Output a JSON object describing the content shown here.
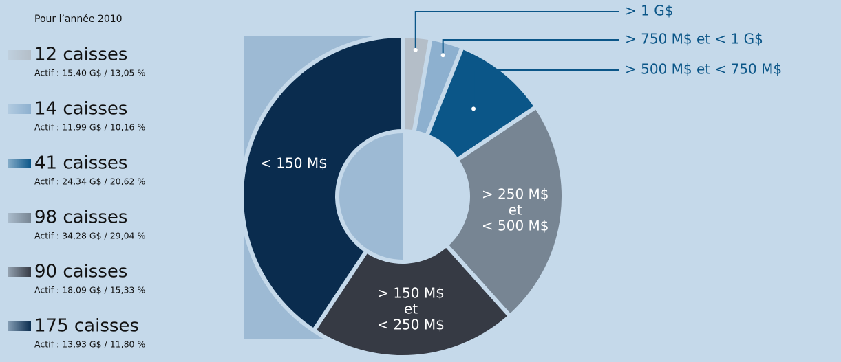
{
  "chart_data": {
    "type": "donut",
    "title": "Pour l’année 2010",
    "categories": [
      "> 1 G$",
      "> 750 M$ et < 1 G$",
      "> 500 M$ et < 750 M$",
      "> 250 M$ et < 500 M$",
      "> 150 M$ et < 250 M$",
      "< 150 M$"
    ],
    "values": [
      12,
      14,
      41,
      98,
      90,
      175
    ],
    "value_labels": [
      "12 caisses",
      "14 caisses",
      "41 caisses",
      "98 caisses",
      "90 caisses",
      "175 caisses"
    ],
    "details": [
      "Actif : 15,40 G$ / 13,05 %",
      "Actif : 11,99 G$ / 10,16 %",
      "Actif : 24,34 G$ / 20,62 %",
      "Actif : 34,28 G$ / 29,04 %",
      "Actif : 18,09 G$ / 15,33 %",
      "Actif : 13,93 G$ / 11,80 %"
    ],
    "colors": [
      "#b4bec8",
      "#8db0cf",
      "#0b5688",
      "#778593",
      "#363a44",
      "#0a2c4e"
    ]
  }
}
